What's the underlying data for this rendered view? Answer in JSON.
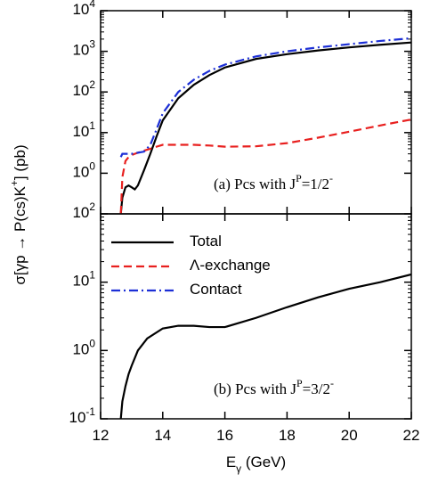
{
  "chart_data": [
    {
      "type": "line",
      "log_y": true,
      "ylabel": "σ[γp → P(cs)K^+] (pb)",
      "annotation": "(a)  Pcs with J^P=1/2^-",
      "xlim": [
        12,
        22
      ],
      "xticks": [
        12,
        14,
        16,
        18,
        20,
        22
      ],
      "ylim": [
        0.1,
        10000
      ],
      "yticks": [
        {
          "value": 1,
          "label": "10^0"
        },
        {
          "value": 10,
          "label": "10^1"
        },
        {
          "value": 100,
          "label": "10^2"
        },
        {
          "value": 1000,
          "label": "10^3"
        },
        {
          "value": 10000,
          "label": "10^4"
        }
      ],
      "x": [
        12.65,
        12.7,
        12.8,
        12.9,
        13.0,
        13.1,
        13.2,
        13.4,
        13.6,
        13.8,
        14,
        14.5,
        15,
        15.5,
        16,
        17,
        18,
        19,
        20,
        21,
        22
      ],
      "series": [
        {
          "name": "Total",
          "color": "#000000",
          "dash": "solid",
          "values": [
            0.1,
            0.25,
            0.45,
            0.5,
            0.45,
            0.4,
            0.5,
            1.2,
            3,
            8,
            20,
            70,
            150,
            260,
            400,
            650,
            850,
            1050,
            1250,
            1450,
            1650
          ]
        },
        {
          "name": "Λ-exchange",
          "color": "#e8201f",
          "dash": "dashed",
          "values": [
            0.1,
            0.8,
            2,
            2.5,
            2.8,
            3,
            3.2,
            3.6,
            4,
            4.5,
            5,
            5,
            5,
            4.8,
            4.5,
            4.6,
            5.5,
            7.5,
            10.5,
            15,
            21
          ]
        },
        {
          "name": "Contact",
          "color": "#1c2fd6",
          "dash": "dashdot",
          "values": [
            2.5,
            3,
            3,
            3,
            3,
            3.1,
            3.2,
            3.4,
            5,
            12,
            30,
            100,
            200,
            330,
            470,
            750,
            1000,
            1250,
            1500,
            1800,
            2100
          ]
        }
      ]
    },
    {
      "type": "line",
      "log_y": true,
      "legend": "upper left",
      "xlabel": "E_γ (GeV)",
      "annotation": "(b)  Pcs with J^P=3/2^-",
      "xlim": [
        12,
        22
      ],
      "xticks": [
        12,
        14,
        16,
        18,
        20,
        22
      ],
      "ylim": [
        0.1,
        100
      ],
      "yticks": [
        {
          "value": 0.1,
          "label": "10^-1"
        },
        {
          "value": 1,
          "label": "10^0"
        },
        {
          "value": 10,
          "label": "10^1"
        },
        {
          "value": 100,
          "label": "10^2"
        }
      ],
      "x": [
        12.65,
        12.7,
        12.8,
        12.9,
        13.0,
        13.2,
        13.5,
        14,
        14.5,
        15,
        15.5,
        16,
        17,
        18,
        19,
        20,
        21,
        22
      ],
      "series": [
        {
          "name": "Total",
          "color": "#000000",
          "dash": "solid",
          "values": [
            0.1,
            0.18,
            0.3,
            0.45,
            0.6,
            1.0,
            1.5,
            2.1,
            2.3,
            2.3,
            2.2,
            2.2,
            3,
            4.3,
            6,
            8,
            10,
            13
          ]
        }
      ]
    }
  ]
}
